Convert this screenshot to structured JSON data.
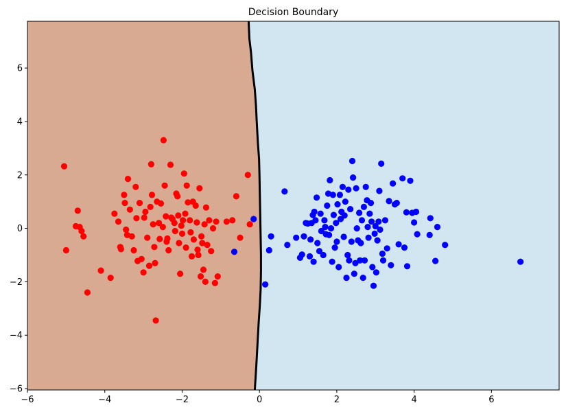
{
  "chart_data": {
    "type": "scatter",
    "title": "Decision Boundary",
    "xlabel": "",
    "ylabel": "",
    "xlim": [
      -6.0,
      7.75
    ],
    "ylim": [
      -6.05,
      7.75
    ],
    "xticks": [
      "−6",
      "−4",
      "−2",
      "0",
      "2",
      "4",
      "6"
    ],
    "yticks": [
      "−6",
      "−4",
      "−2",
      "0",
      "2",
      "4",
      "6"
    ],
    "grid": false,
    "regions": [
      {
        "class": "red",
        "side": "left",
        "color": "#d8aa91"
      },
      {
        "class": "blue",
        "side": "right",
        "color": "#d1e6f0"
      }
    ],
    "boundary": {
      "color": "#000000",
      "points": [
        [
          -0.28,
          7.75
        ],
        [
          -0.26,
          7.1
        ],
        [
          -0.22,
          6.6
        ],
        [
          -0.18,
          5.9
        ],
        [
          -0.12,
          5.2
        ],
        [
          -0.09,
          4.6
        ],
        [
          -0.07,
          4.0
        ],
        [
          -0.04,
          3.2
        ],
        [
          -0.01,
          2.6
        ],
        [
          0.0,
          2.0
        ],
        [
          0.01,
          1.3
        ],
        [
          0.02,
          0.5
        ],
        [
          0.03,
          -0.3
        ],
        [
          0.04,
          -1.0
        ],
        [
          0.04,
          -1.6
        ],
        [
          0.03,
          -2.3
        ],
        [
          0.01,
          -2.9
        ],
        [
          -0.02,
          -3.5
        ],
        [
          -0.05,
          -4.3
        ],
        [
          -0.08,
          -5.1
        ],
        [
          -0.1,
          -5.6
        ],
        [
          -0.12,
          -6.05
        ]
      ]
    },
    "series": [
      {
        "color": "#ff0000",
        "points": [
          [
            -5.05,
            2.32
          ],
          [
            -5.0,
            -0.82
          ],
          [
            -4.75,
            0.08
          ],
          [
            -4.7,
            0.66
          ],
          [
            -4.65,
            0.05
          ],
          [
            -4.6,
            -0.1
          ],
          [
            -4.55,
            -0.3
          ],
          [
            -4.45,
            -2.4
          ],
          [
            -4.1,
            -1.58
          ],
          [
            -3.85,
            -1.85
          ],
          [
            -3.75,
            0.55
          ],
          [
            -3.65,
            0.25
          ],
          [
            -3.6,
            -0.7
          ],
          [
            -3.58,
            -0.78
          ],
          [
            -3.5,
            1.25
          ],
          [
            -3.48,
            0.95
          ],
          [
            -3.45,
            -0.05
          ],
          [
            -3.42,
            -0.25
          ],
          [
            -3.4,
            1.85
          ],
          [
            -3.35,
            0.7
          ],
          [
            -3.3,
            -0.3
          ],
          [
            -3.25,
            -0.82
          ],
          [
            -3.2,
            1.55
          ],
          [
            -3.18,
            0.38
          ],
          [
            -3.15,
            -1.22
          ],
          [
            -3.1,
            0.95
          ],
          [
            -3.05,
            -1.15
          ],
          [
            -3.0,
            -1.65
          ],
          [
            -2.98,
            0.4
          ],
          [
            -2.95,
            0.62
          ],
          [
            -2.9,
            -0.35
          ],
          [
            -2.85,
            -1.4
          ],
          [
            -2.82,
            0.8
          ],
          [
            -2.8,
            2.4
          ],
          [
            -2.78,
            1.25
          ],
          [
            -2.75,
            0.15
          ],
          [
            -2.72,
            -0.7
          ],
          [
            -2.7,
            -1.3
          ],
          [
            -2.68,
            -3.45
          ],
          [
            -2.65,
            1.0
          ],
          [
            -2.6,
            0.2
          ],
          [
            -2.58,
            -0.4
          ],
          [
            -2.55,
            0.93
          ],
          [
            -2.5,
            0.05
          ],
          [
            -2.48,
            3.3
          ],
          [
            -2.45,
            1.6
          ],
          [
            -2.42,
            0.45
          ],
          [
            -2.4,
            -0.5
          ],
          [
            -2.38,
            -0.38
          ],
          [
            -2.35,
            -0.82
          ],
          [
            -2.3,
            2.38
          ],
          [
            -2.28,
            0.4
          ],
          [
            -2.25,
            0.35
          ],
          [
            -2.2,
            0.2
          ],
          [
            -2.18,
            -0.1
          ],
          [
            -2.15,
            1.3
          ],
          [
            -2.12,
            1.2
          ],
          [
            -2.1,
            0.48
          ],
          [
            -2.08,
            -0.55
          ],
          [
            -2.05,
            -1.7
          ],
          [
            -2.02,
            0.1
          ],
          [
            -2.0,
            -0.2
          ],
          [
            -1.98,
            0.3
          ],
          [
            -1.95,
            2.05
          ],
          [
            -1.92,
            0.55
          ],
          [
            -1.9,
            -0.72
          ],
          [
            -1.88,
            1.6
          ],
          [
            -1.85,
            0.97
          ],
          [
            -1.8,
            0.3
          ],
          [
            -1.78,
            -0.15
          ],
          [
            -1.75,
            -1.05
          ],
          [
            -1.72,
            1.0
          ],
          [
            -1.7,
            -0.42
          ],
          [
            -1.65,
            0.85
          ],
          [
            -1.62,
            0.22
          ],
          [
            -1.6,
            -0.8
          ],
          [
            -1.58,
            -1.0
          ],
          [
            -1.55,
            1.5
          ],
          [
            -1.52,
            -1.8
          ],
          [
            -1.5,
            -0.3
          ],
          [
            -1.48,
            -0.55
          ],
          [
            -1.45,
            -1.55
          ],
          [
            -1.42,
            0.15
          ],
          [
            -1.4,
            -2.0
          ],
          [
            -1.38,
            0.78
          ],
          [
            -1.35,
            -0.62
          ],
          [
            -1.3,
            0.3
          ],
          [
            -1.25,
            -0.85
          ],
          [
            -1.2,
            0.0
          ],
          [
            -1.15,
            -2.05
          ],
          [
            -1.12,
            0.25
          ],
          [
            -1.08,
            -1.8
          ],
          [
            -0.85,
            0.25
          ],
          [
            -0.7,
            0.3
          ],
          [
            -0.6,
            1.2
          ],
          [
            -0.5,
            -0.35
          ],
          [
            -0.3,
            2.0
          ],
          [
            -0.25,
            0.15
          ]
        ]
      },
      {
        "color": "#0000ff",
        "points": [
          [
            -0.65,
            -0.88
          ],
          [
            -0.15,
            0.35
          ],
          [
            0.15,
            -2.1
          ],
          [
            0.25,
            -0.82
          ],
          [
            0.3,
            -0.3
          ],
          [
            0.65,
            1.38
          ],
          [
            0.72,
            -0.62
          ],
          [
            0.95,
            -0.35
          ],
          [
            1.05,
            -1.1
          ],
          [
            1.1,
            -0.98
          ],
          [
            1.15,
            -0.3
          ],
          [
            1.2,
            0.2
          ],
          [
            1.25,
            0.18
          ],
          [
            1.3,
            -1.05
          ],
          [
            1.32,
            -0.42
          ],
          [
            1.35,
            0.2
          ],
          [
            1.38,
            0.5
          ],
          [
            1.4,
            -1.25
          ],
          [
            1.42,
            0.62
          ],
          [
            1.45,
            0.3
          ],
          [
            1.48,
            1.15
          ],
          [
            1.5,
            -0.55
          ],
          [
            1.55,
            -0.85
          ],
          [
            1.58,
            0.55
          ],
          [
            1.6,
            -0.1
          ],
          [
            1.65,
            -1.0
          ],
          [
            1.68,
            0.3
          ],
          [
            1.7,
            0.05
          ],
          [
            1.72,
            -0.22
          ],
          [
            1.75,
            0.85
          ],
          [
            1.78,
            1.3
          ],
          [
            1.8,
            -0.25
          ],
          [
            1.82,
            1.8
          ],
          [
            1.85,
            0.0
          ],
          [
            1.88,
            -1.25
          ],
          [
            1.9,
            1.25
          ],
          [
            1.92,
            0.5
          ],
          [
            1.95,
            -0.72
          ],
          [
            1.98,
            0.2
          ],
          [
            2.0,
            -0.5
          ],
          [
            2.02,
            0.9
          ],
          [
            2.05,
            -1.45
          ],
          [
            2.08,
            1.25
          ],
          [
            2.1,
            0.35
          ],
          [
            2.12,
            0.62
          ],
          [
            2.15,
            1.55
          ],
          [
            2.18,
            -0.32
          ],
          [
            2.2,
            0.48
          ],
          [
            2.22,
            1.0
          ],
          [
            2.25,
            -1.85
          ],
          [
            2.28,
            -1.0
          ],
          [
            2.3,
            1.45
          ],
          [
            2.32,
            -1.2
          ],
          [
            2.35,
            0.72
          ],
          [
            2.38,
            -0.5
          ],
          [
            2.4,
            2.52
          ],
          [
            2.42,
            1.9
          ],
          [
            2.45,
            -1.7
          ],
          [
            2.48,
            -1.3
          ],
          [
            2.5,
            1.5
          ],
          [
            2.52,
            0.0
          ],
          [
            2.55,
            -0.45
          ],
          [
            2.58,
            0.58
          ],
          [
            2.6,
            -1.2
          ],
          [
            2.62,
            -0.55
          ],
          [
            2.65,
            0.3
          ],
          [
            2.68,
            -1.85
          ],
          [
            2.7,
            0.8
          ],
          [
            2.72,
            -1.2
          ],
          [
            2.75,
            1.55
          ],
          [
            2.78,
            1.05
          ],
          [
            2.8,
            0.05
          ],
          [
            2.82,
            -0.35
          ],
          [
            2.85,
            0.55
          ],
          [
            2.88,
            0.95
          ],
          [
            2.9,
            0.25
          ],
          [
            2.92,
            -1.45
          ],
          [
            2.95,
            -2.15
          ],
          [
            2.98,
            -0.2
          ],
          [
            3.0,
            0.08
          ],
          [
            3.02,
            -1.65
          ],
          [
            3.05,
            -0.45
          ],
          [
            3.08,
            0.25
          ],
          [
            3.1,
            1.4
          ],
          [
            3.12,
            -0.05
          ],
          [
            3.15,
            2.42
          ],
          [
            3.18,
            -0.95
          ],
          [
            3.2,
            -1.2
          ],
          [
            3.25,
            0.3
          ],
          [
            3.3,
            -0.75
          ],
          [
            3.35,
            1.02
          ],
          [
            3.4,
            -1.38
          ],
          [
            3.45,
            1.68
          ],
          [
            3.5,
            0.9
          ],
          [
            3.55,
            0.95
          ],
          [
            3.6,
            -0.6
          ],
          [
            3.7,
            1.87
          ],
          [
            3.75,
            -0.72
          ],
          [
            3.8,
            0.6
          ],
          [
            3.82,
            -1.42
          ],
          [
            3.9,
            1.78
          ],
          [
            3.95,
            0.58
          ],
          [
            4.0,
            0.22
          ],
          [
            4.05,
            0.62
          ],
          [
            4.08,
            -0.22
          ],
          [
            4.4,
            -0.25
          ],
          [
            4.42,
            0.38
          ],
          [
            4.55,
            -1.22
          ],
          [
            4.6,
            0.05
          ],
          [
            4.8,
            -0.62
          ],
          [
            6.75,
            -1.25
          ]
        ]
      }
    ]
  }
}
